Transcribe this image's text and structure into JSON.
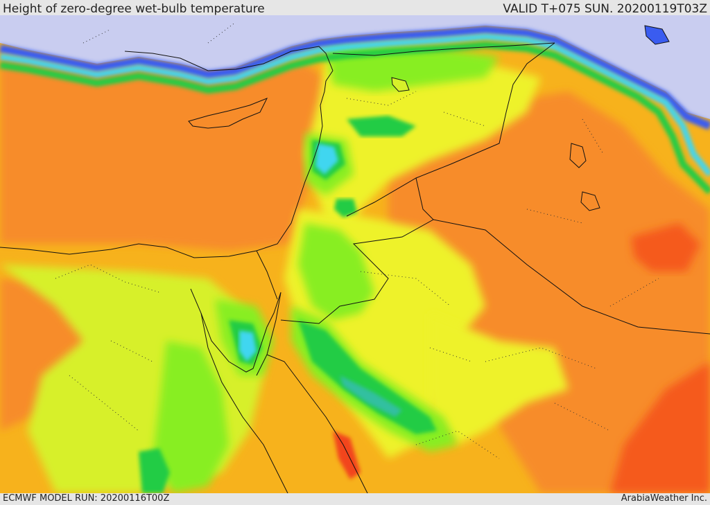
{
  "header": {
    "title": "Height of zero-degree wet-bulb temperature",
    "valid": "VALID T+075 SUN. 20200119T03Z"
  },
  "footer": {
    "model_run": "ECMWF MODEL RUN: 20200116T00Z",
    "credit": "ArabiaWeather Inc."
  },
  "palette": {
    "sea_ice": "#c9cdf0",
    "lavender": "#8a92f0",
    "blue": "#3a5cf0",
    "cyan": "#3fd6f0",
    "teal": "#33c0a0",
    "green": "#22cc44",
    "lime": "#88ee22",
    "yellow_green": "#d7f02a",
    "yellow": "#eef22a",
    "amber": "#f7b21c",
    "orange": "#f78c2a",
    "red_orange": "#f55a1a",
    "red": "#f2441a",
    "border": "#111111"
  }
}
